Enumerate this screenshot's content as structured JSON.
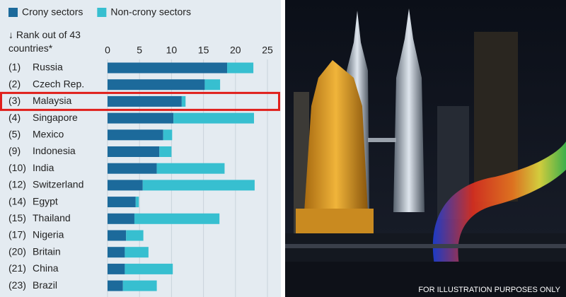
{
  "chart_data": {
    "type": "stacked-bar-horizontal",
    "y_label": "↓ Rank out of 43 countries*",
    "ranks": [
      "(1)",
      "(2)",
      "(3)",
      "(4)",
      "(5)",
      "(9)",
      "(10)",
      "(12)",
      "(14)",
      "(15)",
      "(17)",
      "(20)",
      "(21)",
      "(23)"
    ],
    "categories": [
      "Russia",
      "Czech Rep.",
      "Malaysia",
      "Singapore",
      "Mexico",
      "Indonesia",
      "India",
      "Switzerland",
      "Egypt",
      "Thailand",
      "Nigeria",
      "Britain",
      "China",
      "Brazil"
    ],
    "series": [
      {
        "name": "Crony sectors",
        "color": "#1c6a9b",
        "values": [
          18.7,
          15.2,
          11.6,
          10.3,
          8.7,
          8.1,
          7.7,
          5.5,
          4.4,
          4.2,
          2.9,
          2.7,
          2.7,
          2.4
        ]
      },
      {
        "name": "Non-crony sectors",
        "color": "#37bfd0",
        "values": [
          4.1,
          2.4,
          0.6,
          12.6,
          1.4,
          1.9,
          10.6,
          17.5,
          0.5,
          13.3,
          2.7,
          3.7,
          7.5,
          5.3
        ]
      }
    ],
    "xlim": [
      0,
      25
    ],
    "xticks": [
      0,
      5,
      10,
      15,
      20,
      25
    ],
    "grid": true
  },
  "photo": {
    "caption": "FOR ILLUSTRATION PURPOSES ONLY"
  }
}
